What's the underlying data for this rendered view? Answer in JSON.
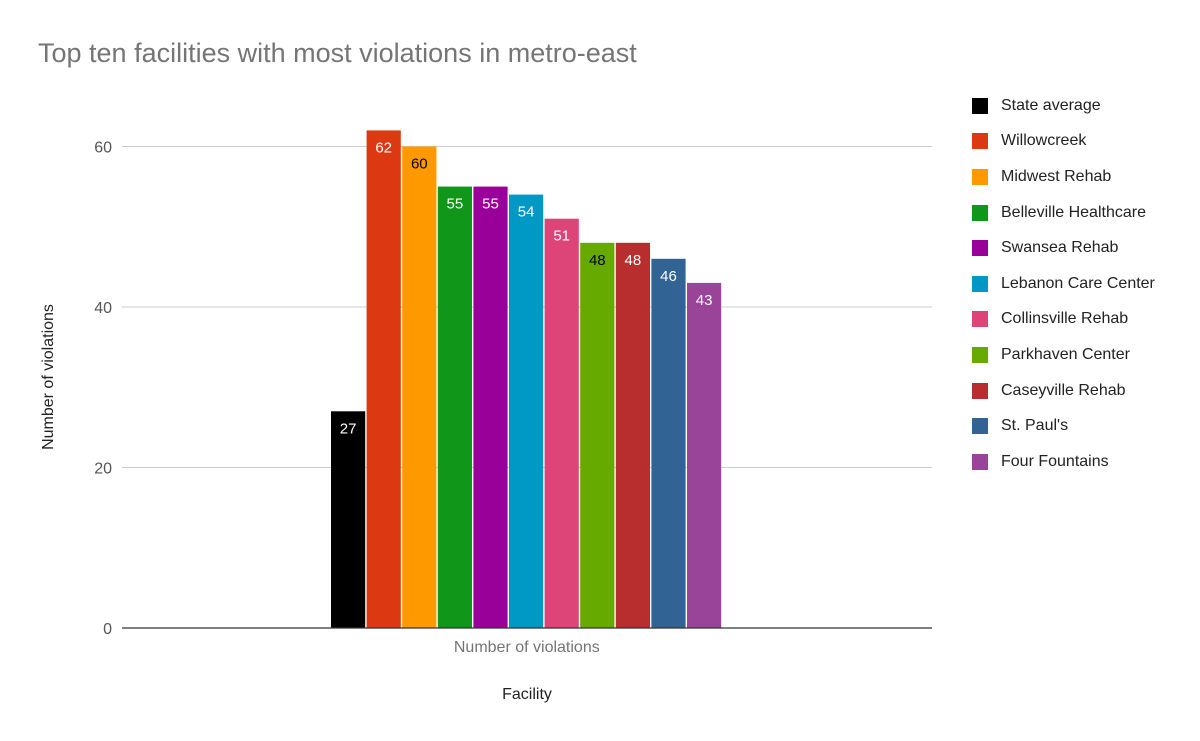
{
  "chart_data": {
    "type": "bar",
    "title": "Top ten facilities with most violations in metro-east",
    "xlabel": "Facility",
    "ylabel": "Number of violations",
    "categories": [
      "Number of violations"
    ],
    "ylim": [
      0,
      62
    ],
    "yticks": [
      0,
      20,
      40,
      60
    ],
    "grid": true,
    "legend_position": "right",
    "series": [
      {
        "name": "State average",
        "values": [
          27
        ],
        "color": "#000000",
        "label_color": "#ffffff"
      },
      {
        "name": "Willowcreek",
        "values": [
          62
        ],
        "color": "#dc3912",
        "label_color": "#ffffff"
      },
      {
        "name": "Midwest Rehab",
        "values": [
          60
        ],
        "color": "#ff9900",
        "label_color": "#000000"
      },
      {
        "name": "Belleville Healthcare",
        "values": [
          55
        ],
        "color": "#109618",
        "label_color": "#ffffff"
      },
      {
        "name": "Swansea Rehab",
        "values": [
          55
        ],
        "color": "#990099",
        "label_color": "#ffffff"
      },
      {
        "name": "Lebanon Care Center",
        "values": [
          54
        ],
        "color": "#0099c6",
        "label_color": "#ffffff"
      },
      {
        "name": "Collinsville Rehab",
        "values": [
          51
        ],
        "color": "#dd4477",
        "label_color": "#ffffff"
      },
      {
        "name": "Parkhaven Center",
        "values": [
          48
        ],
        "color": "#66aa00",
        "label_color": "#000000"
      },
      {
        "name": "Caseyville Rehab",
        "values": [
          48
        ],
        "color": "#b82e2e",
        "label_color": "#ffffff"
      },
      {
        "name": "St. Paul's",
        "values": [
          46
        ],
        "color": "#316395",
        "label_color": "#ffffff"
      },
      {
        "name": "Four Fountains",
        "values": [
          43
        ],
        "color": "#994499",
        "label_color": "#ffffff"
      }
    ]
  }
}
